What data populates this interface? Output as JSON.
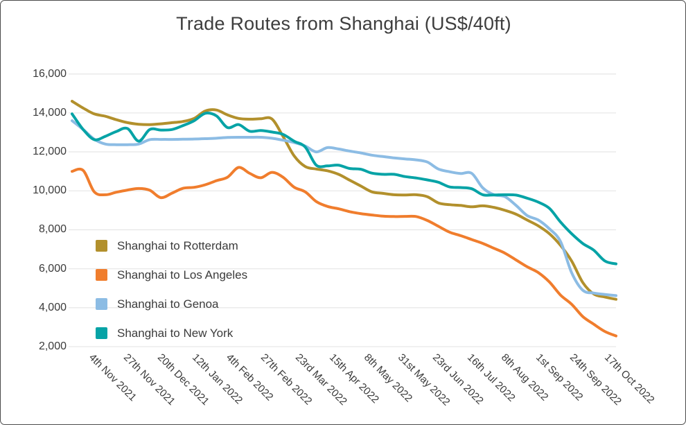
{
  "title": "Trade Routes from Shanghai (US$/40ft)",
  "chart_data": {
    "type": "line",
    "title": "Trade Routes from Shanghai (US$/40ft)",
    "xlabel": "",
    "ylabel": "",
    "ylim": [
      2000,
      16000
    ],
    "grid": "horizontal-only",
    "legend_position": "inside-left",
    "y_tick_labels": [
      "16,000",
      "14,000",
      "12,000",
      "10,000",
      "8,000",
      "6,000",
      "4,000",
      "2,000"
    ],
    "y_tick_values": [
      16000,
      14000,
      12000,
      10000,
      8000,
      6000,
      4000,
      2000
    ],
    "x_tick_labels": [
      "4th Nov 2021",
      "27th Nov 2021",
      "20th Dec 2021",
      "12th Jan 2022",
      "4th Feb 2022",
      "27th Feb 2022",
      "23rd Mar 2022",
      "15th Apr 2022",
      "8th May 2022",
      "31st May 2022",
      "23rd Jun 2022",
      "16th Jul 2022",
      "8th Aug 2022",
      "1st Sep 2022",
      "24th Sep 2022",
      "17th Oct 2022"
    ],
    "series": [
      {
        "name": "Shanghai to Rotterdam",
        "color": "#b2902c",
        "values": [
          14600,
          14250,
          13950,
          13830,
          13650,
          13500,
          13420,
          13400,
          13440,
          13500,
          13560,
          13720,
          14100,
          14150,
          13900,
          13720,
          13680,
          13700,
          13690,
          12800,
          11800,
          11250,
          11120,
          11030,
          10850,
          10550,
          10250,
          9950,
          9870,
          9800,
          9790,
          9800,
          9700,
          9380,
          9290,
          9250,
          9180,
          9230,
          9150,
          9000,
          8800,
          8500,
          8200,
          7800,
          7200,
          6400,
          5300,
          4700,
          4550,
          4430
        ]
      },
      {
        "name": "Shanghai to Los Angeles",
        "color": "#f07d2d",
        "values": [
          11000,
          11050,
          9950,
          9800,
          9930,
          10040,
          10120,
          10030,
          9650,
          9880,
          10130,
          10180,
          10310,
          10520,
          10700,
          11200,
          10900,
          10670,
          10950,
          10700,
          10190,
          9950,
          9450,
          9200,
          9080,
          8930,
          8830,
          8760,
          8700,
          8680,
          8690,
          8680,
          8480,
          8180,
          7880,
          7700,
          7500,
          7300,
          7050,
          6800,
          6450,
          6100,
          5800,
          5320,
          4650,
          4180,
          3550,
          3150,
          2780,
          2550
        ]
      },
      {
        "name": "Shanghai to Genoa",
        "color": "#8cbce4",
        "values": [
          13600,
          13150,
          12650,
          12400,
          12370,
          12370,
          12400,
          12630,
          12640,
          12640,
          12650,
          12660,
          12680,
          12700,
          12740,
          12750,
          12750,
          12750,
          12700,
          12600,
          12480,
          12300,
          12000,
          12220,
          12150,
          12040,
          11950,
          11830,
          11760,
          11690,
          11640,
          11590,
          11480,
          11120,
          10980,
          10890,
          10900,
          10150,
          9800,
          9700,
          9250,
          8730,
          8500,
          8050,
          7400,
          5800,
          4900,
          4750,
          4680,
          4620
        ]
      },
      {
        "name": "Shanghai to New York",
        "color": "#06a3a6",
        "values": [
          13950,
          13150,
          12630,
          12800,
          13050,
          13200,
          12550,
          13150,
          13120,
          13150,
          13350,
          13600,
          13980,
          13850,
          13250,
          13400,
          13060,
          13100,
          13020,
          12900,
          12550,
          12250,
          11320,
          11280,
          11320,
          11150,
          11110,
          10910,
          10850,
          10850,
          10730,
          10660,
          10560,
          10440,
          10200,
          10170,
          10110,
          9800,
          9790,
          9800,
          9780,
          9620,
          9420,
          9100,
          8400,
          7800,
          7300,
          6950,
          6400,
          6250
        ]
      }
    ]
  },
  "style": {
    "gridline_color": "#e8e8e8",
    "axis_text_color": "#3a3a3a",
    "title_color": "#3d3d3d",
    "background": "#ffffff",
    "border_color": "#4a4a4a"
  }
}
